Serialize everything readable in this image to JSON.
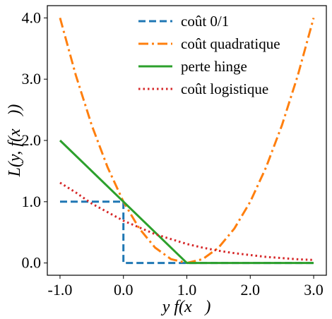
{
  "chart_data": {
    "type": "line",
    "title": "",
    "xlabel": "y f(x⃗)",
    "ylabel": "L(y, f(x⃗))",
    "xlim": [
      -1.2,
      3.2
    ],
    "ylim": [
      -0.2,
      4.2
    ],
    "xticks": [
      -1.0,
      0.0,
      1.0,
      2.0,
      3.0
    ],
    "xtick_labels": [
      "-1.0",
      "0.0",
      "1.0",
      "2.0",
      "3.0"
    ],
    "yticks": [
      0.0,
      1.0,
      2.0,
      3.0,
      4.0
    ],
    "ytick_labels": [
      "0.0",
      "1.0",
      "2.0",
      "3.0",
      "4.0"
    ],
    "grid": false,
    "legend_position": "top-right",
    "series": [
      {
        "name": "coût 0/1",
        "color": "#1f77b4",
        "style": "dashed",
        "x": [
          -1.0,
          0.0,
          0.0,
          1.0,
          2.0,
          3.0
        ],
        "y": [
          1.0,
          1.0,
          0.0,
          0.0,
          0.0,
          0.0
        ]
      },
      {
        "name": "coût quadratique",
        "color": "#ff7f0e",
        "style": "dashdot",
        "x": [
          -1.0,
          -0.75,
          -0.5,
          -0.25,
          0.0,
          0.25,
          0.5,
          0.75,
          1.0,
          1.25,
          1.5,
          1.75,
          2.0,
          2.25,
          2.5,
          2.75,
          3.0
        ],
        "y": [
          4.0,
          3.0625,
          2.25,
          1.5625,
          1.0,
          0.5625,
          0.25,
          0.0625,
          0.0,
          0.0625,
          0.25,
          0.5625,
          1.0,
          1.5625,
          2.25,
          3.0625,
          4.0
        ]
      },
      {
        "name": "perte hinge",
        "color": "#2ca02c",
        "style": "solid",
        "x": [
          -1.0,
          1.0,
          3.0
        ],
        "y": [
          2.0,
          0.0,
          0.0
        ]
      },
      {
        "name": "coût logistique",
        "color": "#d62728",
        "style": "dotted",
        "x": [
          -1.0,
          -0.75,
          -0.5,
          -0.25,
          0.0,
          0.25,
          0.5,
          0.75,
          1.0,
          1.25,
          1.5,
          1.75,
          2.0,
          2.25,
          2.5,
          2.75,
          3.0
        ],
        "y": [
          1.31,
          1.15,
          0.97,
          0.83,
          0.69,
          0.58,
          0.47,
          0.39,
          0.31,
          0.25,
          0.2,
          0.16,
          0.13,
          0.1,
          0.08,
          0.06,
          0.05
        ]
      }
    ]
  }
}
